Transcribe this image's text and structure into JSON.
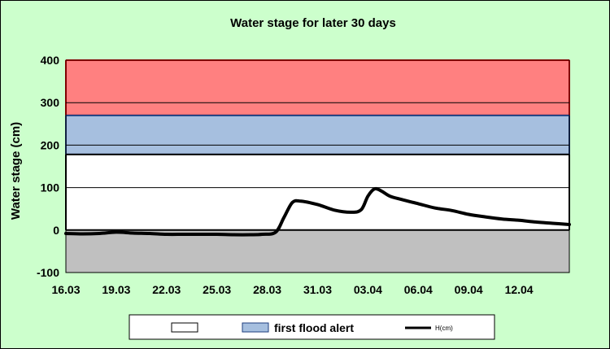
{
  "chart_data": {
    "type": "line",
    "title": "Water stage for later 30 days",
    "ylabel": "Water stage (cm)",
    "xlabel": "",
    "ylim": [
      -100,
      400
    ],
    "yticks": [
      -100,
      0,
      100,
      200,
      300,
      400
    ],
    "xlim": [
      0,
      30
    ],
    "xticks": [
      {
        "x": 0,
        "label": "16.03"
      },
      {
        "x": 3,
        "label": "19.03"
      },
      {
        "x": 6,
        "label": "22.03"
      },
      {
        "x": 9,
        "label": "25.03"
      },
      {
        "x": 12,
        "label": "28.03"
      },
      {
        "x": 15,
        "label": "31.03"
      },
      {
        "x": 18,
        "label": "03.04"
      },
      {
        "x": 21,
        "label": "06.04"
      },
      {
        "x": 24,
        "label": "09.04"
      },
      {
        "x": 27,
        "label": "12.04"
      }
    ],
    "grid": true,
    "bands": [
      {
        "name": "",
        "from": 270,
        "to": 400,
        "color": "#ff8080",
        "border": "#ff0000"
      },
      {
        "name": "first flood alert",
        "from": 178,
        "to": 270,
        "color": "#a6bfdf",
        "border": "#1f3f7f"
      },
      {
        "name": "",
        "from": 0,
        "to": 178,
        "color": "#ffffff",
        "border": "#000000"
      }
    ],
    "series": [
      {
        "name": "H(cm)",
        "color": "#000000",
        "points": [
          [
            0,
            -8
          ],
          [
            1,
            -9
          ],
          [
            2,
            -8
          ],
          [
            3,
            -5
          ],
          [
            4,
            -7
          ],
          [
            5,
            -8
          ],
          [
            6,
            -10
          ],
          [
            7,
            -10
          ],
          [
            8,
            -10
          ],
          [
            9,
            -10
          ],
          [
            10,
            -11
          ],
          [
            11,
            -11
          ],
          [
            11.7,
            -10
          ],
          [
            12.5,
            -5
          ],
          [
            13,
            30
          ],
          [
            13.5,
            65
          ],
          [
            14,
            68
          ],
          [
            15,
            60
          ],
          [
            16,
            47
          ],
          [
            17,
            42
          ],
          [
            17.6,
            48
          ],
          [
            18,
            80
          ],
          [
            18.4,
            97
          ],
          [
            18.8,
            92
          ],
          [
            19.3,
            80
          ],
          [
            20,
            72
          ],
          [
            21,
            62
          ],
          [
            22,
            52
          ],
          [
            23,
            46
          ],
          [
            24,
            37
          ],
          [
            25,
            31
          ],
          [
            26,
            26
          ],
          [
            27,
            23
          ],
          [
            28,
            19
          ],
          [
            29,
            16
          ],
          [
            30,
            13
          ]
        ]
      }
    ],
    "legend": {
      "position": "bottom",
      "entries": [
        {
          "label": "",
          "swatch": "#ffffff"
        },
        {
          "label": "first flood alert",
          "swatch": "#a6bfdf"
        },
        {
          "label": "H(cm)",
          "swatch": "line"
        }
      ]
    },
    "background_color": "#ccffcc"
  }
}
